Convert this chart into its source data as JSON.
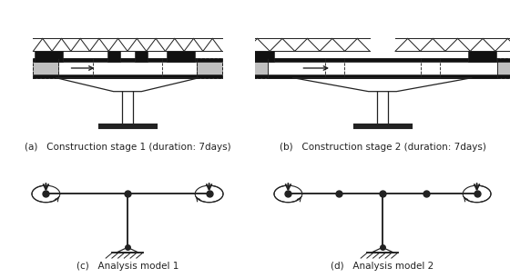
{
  "fig_width": 5.6,
  "fig_height": 3.06,
  "dpi": 100,
  "bg_color": "#ffffff",
  "labels": {
    "a": "(a)   Construction stage 1 (duration: 7days)",
    "b": "(b)   Construction stage 2 (duration: 7days)",
    "c": "(c)   Analysis model 1",
    "d": "(d)   Analysis model 2"
  },
  "label_fontsize": 7.5,
  "line_color": "#222222"
}
